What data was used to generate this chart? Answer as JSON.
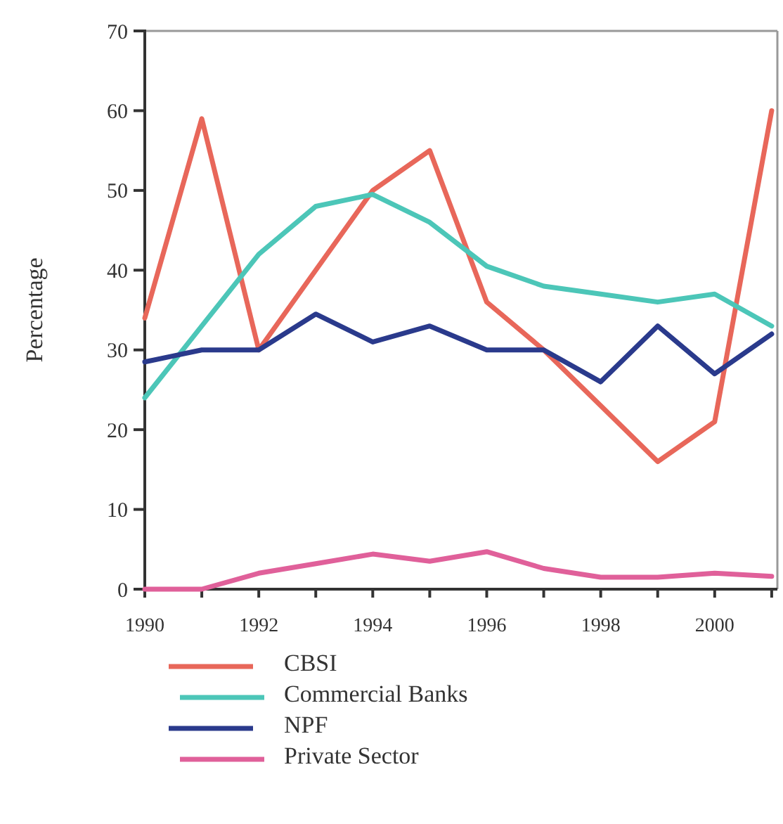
{
  "chart_data": {
    "type": "line",
    "ylabel": "Percentage",
    "x": [
      1990,
      1991,
      1992,
      1993,
      1994,
      1995,
      1996,
      1997,
      1998,
      1999,
      2000,
      2001
    ],
    "xlim": [
      1990,
      2001.1
    ],
    "ylim": [
      0,
      70
    ],
    "yticks": [
      0,
      10,
      20,
      30,
      40,
      50,
      60,
      70
    ],
    "xticks": [
      1990,
      {
        "value": 1991,
        "label": null
      },
      1992,
      {
        "value": 1993,
        "label": null
      },
      1994,
      {
        "value": 1995,
        "label": null
      },
      1996,
      {
        "value": 1997,
        "label": null
      },
      1998,
      {
        "value": 1999,
        "label": null
      },
      2000,
      {
        "value": 2001,
        "label": null
      }
    ],
    "series": [
      {
        "name": "CBSI",
        "color": "#e8675a",
        "values": [
          34,
          59,
          30,
          40,
          50,
          55,
          36,
          30,
          23,
          16,
          21,
          60
        ]
      },
      {
        "name": "Commercial Banks",
        "color": "#4cc6b8",
        "values": [
          24,
          33,
          42,
          48,
          49.5,
          46,
          40.5,
          38,
          37,
          36,
          37,
          33
        ]
      },
      {
        "name": "NPF",
        "color": "#2a3a8c",
        "values": [
          28.5,
          30,
          30,
          34.5,
          31,
          33,
          30,
          30,
          26,
          33,
          27,
          32
        ]
      },
      {
        "name": "Private Sector",
        "color": "#e0609a",
        "values": [
          0,
          0,
          2,
          3.2,
          4.4,
          3.5,
          4.7,
          2.6,
          1.5,
          1.5,
          2,
          1.6
        ]
      }
    ],
    "legend": "bottom",
    "grid": false,
    "marker": "none",
    "line_style": "solid"
  }
}
